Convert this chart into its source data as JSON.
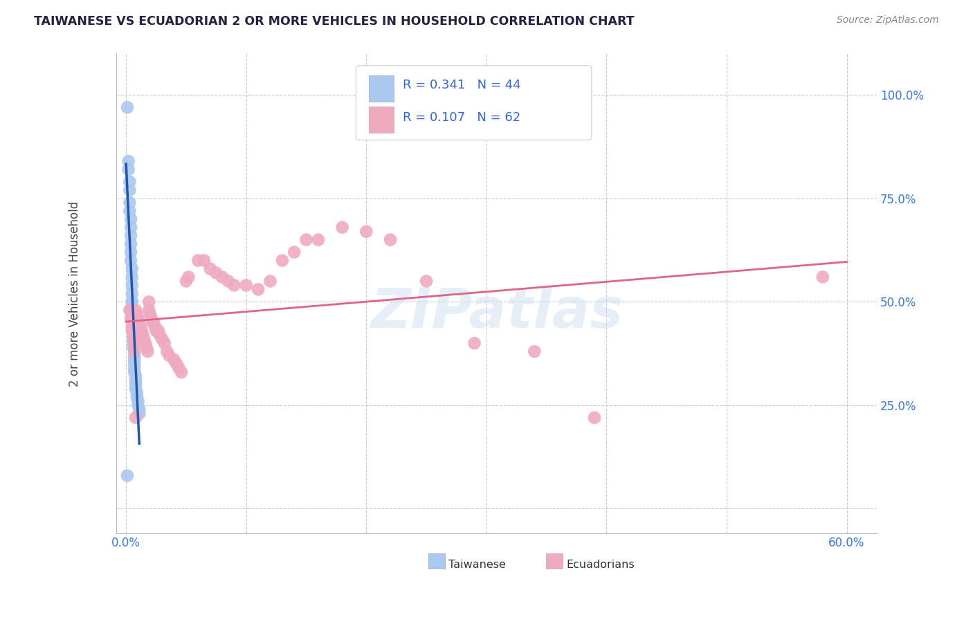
{
  "title": "TAIWANESE VS ECUADORIAN 2 OR MORE VEHICLES IN HOUSEHOLD CORRELATION CHART",
  "source": "Source: ZipAtlas.com",
  "ylabel": "2 or more Vehicles in Household",
  "x_ticks": [
    0.0,
    0.1,
    0.2,
    0.3,
    0.4,
    0.5,
    0.6
  ],
  "x_tick_labels": [
    "0.0%",
    "",
    "",
    "",
    "",
    "",
    "60.0%"
  ],
  "y_ticks": [
    0.0,
    0.25,
    0.5,
    0.75,
    1.0
  ],
  "y_tick_labels": [
    "",
    "25.0%",
    "50.0%",
    "75.0%",
    "100.0%"
  ],
  "xlim": [
    -0.008,
    0.625
  ],
  "ylim": [
    -0.06,
    1.1
  ],
  "watermark": "ZIPatlas",
  "taiwanese_color": "#aac8f0",
  "ecuadorian_color": "#f0aac0",
  "trendline_blue": "#2255aa",
  "trendline_pink": "#dd6688",
  "background_color": "#ffffff",
  "grid_color": "#c8c8dc",
  "taiwanese_points": [
    [
      0.001,
      0.97
    ],
    [
      0.002,
      0.84
    ],
    [
      0.002,
      0.82
    ],
    [
      0.003,
      0.79
    ],
    [
      0.003,
      0.77
    ],
    [
      0.003,
      0.74
    ],
    [
      0.003,
      0.72
    ],
    [
      0.004,
      0.7
    ],
    [
      0.004,
      0.68
    ],
    [
      0.004,
      0.66
    ],
    [
      0.004,
      0.64
    ],
    [
      0.004,
      0.62
    ],
    [
      0.004,
      0.6
    ],
    [
      0.005,
      0.58
    ],
    [
      0.005,
      0.56
    ],
    [
      0.005,
      0.54
    ],
    [
      0.005,
      0.52
    ],
    [
      0.005,
      0.5
    ],
    [
      0.005,
      0.5
    ],
    [
      0.005,
      0.48
    ],
    [
      0.005,
      0.47
    ],
    [
      0.006,
      0.46
    ],
    [
      0.006,
      0.44
    ],
    [
      0.006,
      0.42
    ],
    [
      0.006,
      0.41
    ],
    [
      0.006,
      0.4
    ],
    [
      0.006,
      0.39
    ],
    [
      0.007,
      0.38
    ],
    [
      0.007,
      0.37
    ],
    [
      0.007,
      0.36
    ],
    [
      0.007,
      0.35
    ],
    [
      0.007,
      0.34
    ],
    [
      0.007,
      0.33
    ],
    [
      0.008,
      0.32
    ],
    [
      0.008,
      0.31
    ],
    [
      0.008,
      0.3
    ],
    [
      0.008,
      0.29
    ],
    [
      0.009,
      0.28
    ],
    [
      0.009,
      0.27
    ],
    [
      0.01,
      0.26
    ],
    [
      0.01,
      0.25
    ],
    [
      0.011,
      0.24
    ],
    [
      0.011,
      0.23
    ],
    [
      0.001,
      0.08
    ]
  ],
  "ecuadorian_points": [
    [
      0.003,
      0.48
    ],
    [
      0.004,
      0.48
    ],
    [
      0.004,
      0.46
    ],
    [
      0.005,
      0.46
    ],
    [
      0.005,
      0.44
    ],
    [
      0.005,
      0.43
    ],
    [
      0.006,
      0.43
    ],
    [
      0.006,
      0.42
    ],
    [
      0.006,
      0.41
    ],
    [
      0.007,
      0.41
    ],
    [
      0.007,
      0.4
    ],
    [
      0.007,
      0.38
    ],
    [
      0.008,
      0.22
    ],
    [
      0.008,
      0.48
    ],
    [
      0.009,
      0.47
    ],
    [
      0.01,
      0.46
    ],
    [
      0.011,
      0.45
    ],
    [
      0.012,
      0.44
    ],
    [
      0.013,
      0.43
    ],
    [
      0.014,
      0.42
    ],
    [
      0.015,
      0.41
    ],
    [
      0.016,
      0.4
    ],
    [
      0.017,
      0.39
    ],
    [
      0.018,
      0.38
    ],
    [
      0.019,
      0.5
    ],
    [
      0.019,
      0.48
    ],
    [
      0.02,
      0.47
    ],
    [
      0.021,
      0.46
    ],
    [
      0.022,
      0.45
    ],
    [
      0.023,
      0.45
    ],
    [
      0.024,
      0.44
    ],
    [
      0.025,
      0.43
    ],
    [
      0.027,
      0.43
    ],
    [
      0.028,
      0.42
    ],
    [
      0.03,
      0.41
    ],
    [
      0.032,
      0.4
    ],
    [
      0.034,
      0.38
    ],
    [
      0.036,
      0.37
    ],
    [
      0.04,
      0.36
    ],
    [
      0.042,
      0.35
    ],
    [
      0.044,
      0.34
    ],
    [
      0.046,
      0.33
    ],
    [
      0.05,
      0.55
    ],
    [
      0.052,
      0.56
    ],
    [
      0.06,
      0.6
    ],
    [
      0.065,
      0.6
    ],
    [
      0.07,
      0.58
    ],
    [
      0.075,
      0.57
    ],
    [
      0.08,
      0.56
    ],
    [
      0.085,
      0.55
    ],
    [
      0.09,
      0.54
    ],
    [
      0.1,
      0.54
    ],
    [
      0.11,
      0.53
    ],
    [
      0.12,
      0.55
    ],
    [
      0.13,
      0.6
    ],
    [
      0.14,
      0.62
    ],
    [
      0.15,
      0.65
    ],
    [
      0.16,
      0.65
    ],
    [
      0.18,
      0.68
    ],
    [
      0.2,
      0.67
    ],
    [
      0.22,
      0.65
    ],
    [
      0.25,
      0.55
    ],
    [
      0.29,
      0.4
    ],
    [
      0.34,
      0.38
    ],
    [
      0.39,
      0.22
    ],
    [
      0.58,
      0.56
    ]
  ],
  "tw_trendline_x": [
    0.0005,
    0.011
  ],
  "ec_trendline_x": [
    0.0,
    0.6
  ]
}
